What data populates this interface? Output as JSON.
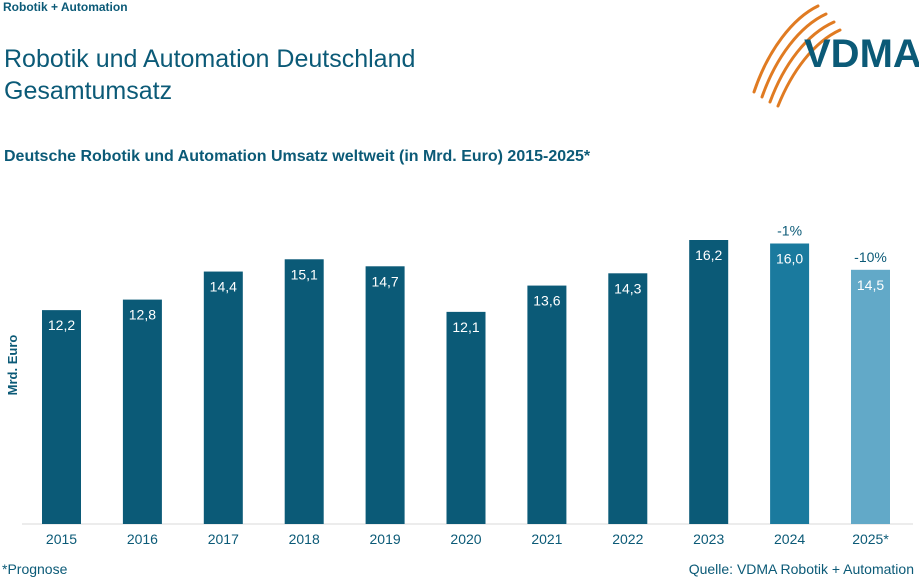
{
  "header": {
    "brand_line": "Robotik + Automation",
    "title_line1": "Robotik und Automation Deutschland",
    "title_line2": "Gesamtumsatz",
    "logo_text": "VDMA"
  },
  "footer": {
    "footnote": "*Prognose",
    "source": "Quelle: VDMA Robotik + Automation"
  },
  "colors": {
    "primary": "#0b5a77",
    "bar_actual": "#0b5a77",
    "bar_2024": "#1a7a9e",
    "bar_forecast": "#62a9c8",
    "logo_orange": "#e07b22"
  },
  "chart_data": {
    "type": "bar",
    "title": "Deutsche Robotik und Automation Umsatz weltweit (in Mrd. Euro) 2015-2025*",
    "ylabel": "Mrd. Euro",
    "xlabel": "",
    "ylim": [
      0,
      16.2
    ],
    "grid": false,
    "categories": [
      "2015",
      "2016",
      "2017",
      "2018",
      "2019",
      "2020",
      "2021",
      "2022",
      "2023",
      "2024",
      "2025*"
    ],
    "values": [
      12.2,
      12.8,
      14.4,
      15.1,
      14.7,
      12.1,
      13.6,
      14.3,
      16.2,
      16.0,
      14.5
    ],
    "value_labels": [
      "12,2",
      "12,8",
      "14,4",
      "15,1",
      "14,7",
      "12,1",
      "13,6",
      "14,3",
      "16,2",
      "16,0",
      "14,5"
    ],
    "annotations": [
      "",
      "",
      "",
      "",
      "",
      "",
      "",
      "",
      "",
      "-1%",
      "-10%"
    ],
    "bar_styles": [
      "actual",
      "actual",
      "actual",
      "actual",
      "actual",
      "actual",
      "actual",
      "actual",
      "actual",
      "2024",
      "forecast"
    ]
  }
}
